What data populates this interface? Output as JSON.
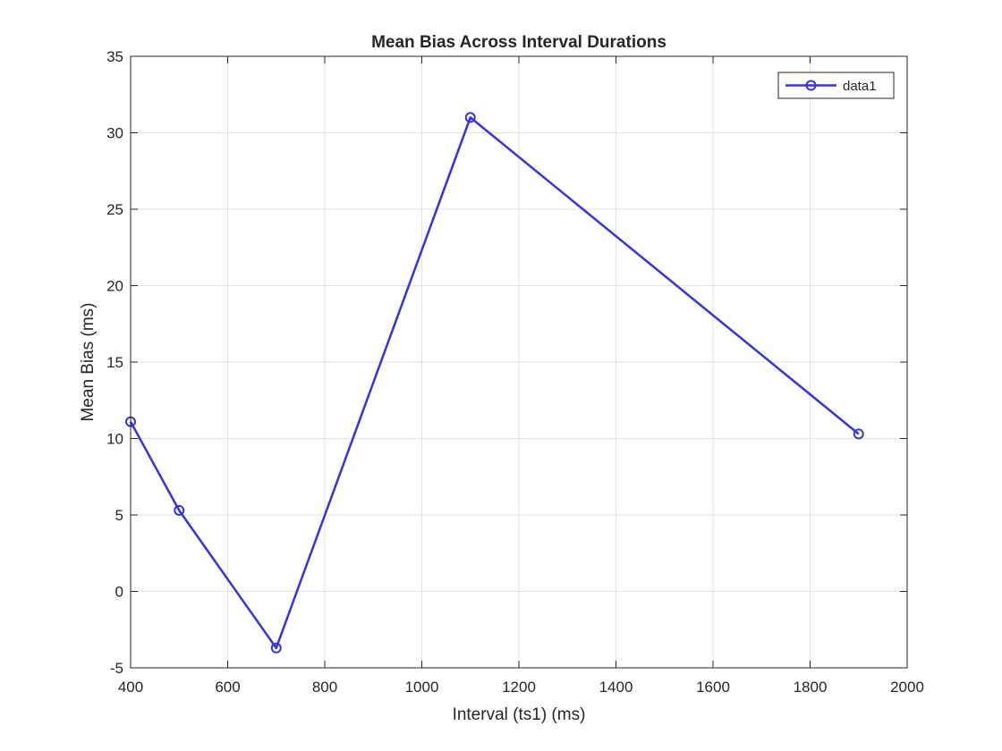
{
  "chart_data": {
    "type": "line",
    "title": "Mean Bias Across Interval Durations",
    "xlabel": "Interval (ts1) (ms)",
    "ylabel": "Mean Bias (ms)",
    "xlim": [
      400,
      2000
    ],
    "ylim": [
      -5,
      35
    ],
    "xticks": [
      400,
      600,
      800,
      1000,
      1200,
      1400,
      1600,
      1800,
      2000
    ],
    "yticks": [
      -5,
      0,
      5,
      10,
      15,
      20,
      25,
      30,
      35
    ],
    "grid": true,
    "legend_position": "top-right",
    "series": [
      {
        "name": "data1",
        "color": "#3232ea",
        "marker": "circle",
        "x": [
          400,
          500,
          700,
          1100,
          1900
        ],
        "y": [
          11.1,
          5.3,
          -3.7,
          31.0,
          10.3
        ]
      }
    ]
  }
}
